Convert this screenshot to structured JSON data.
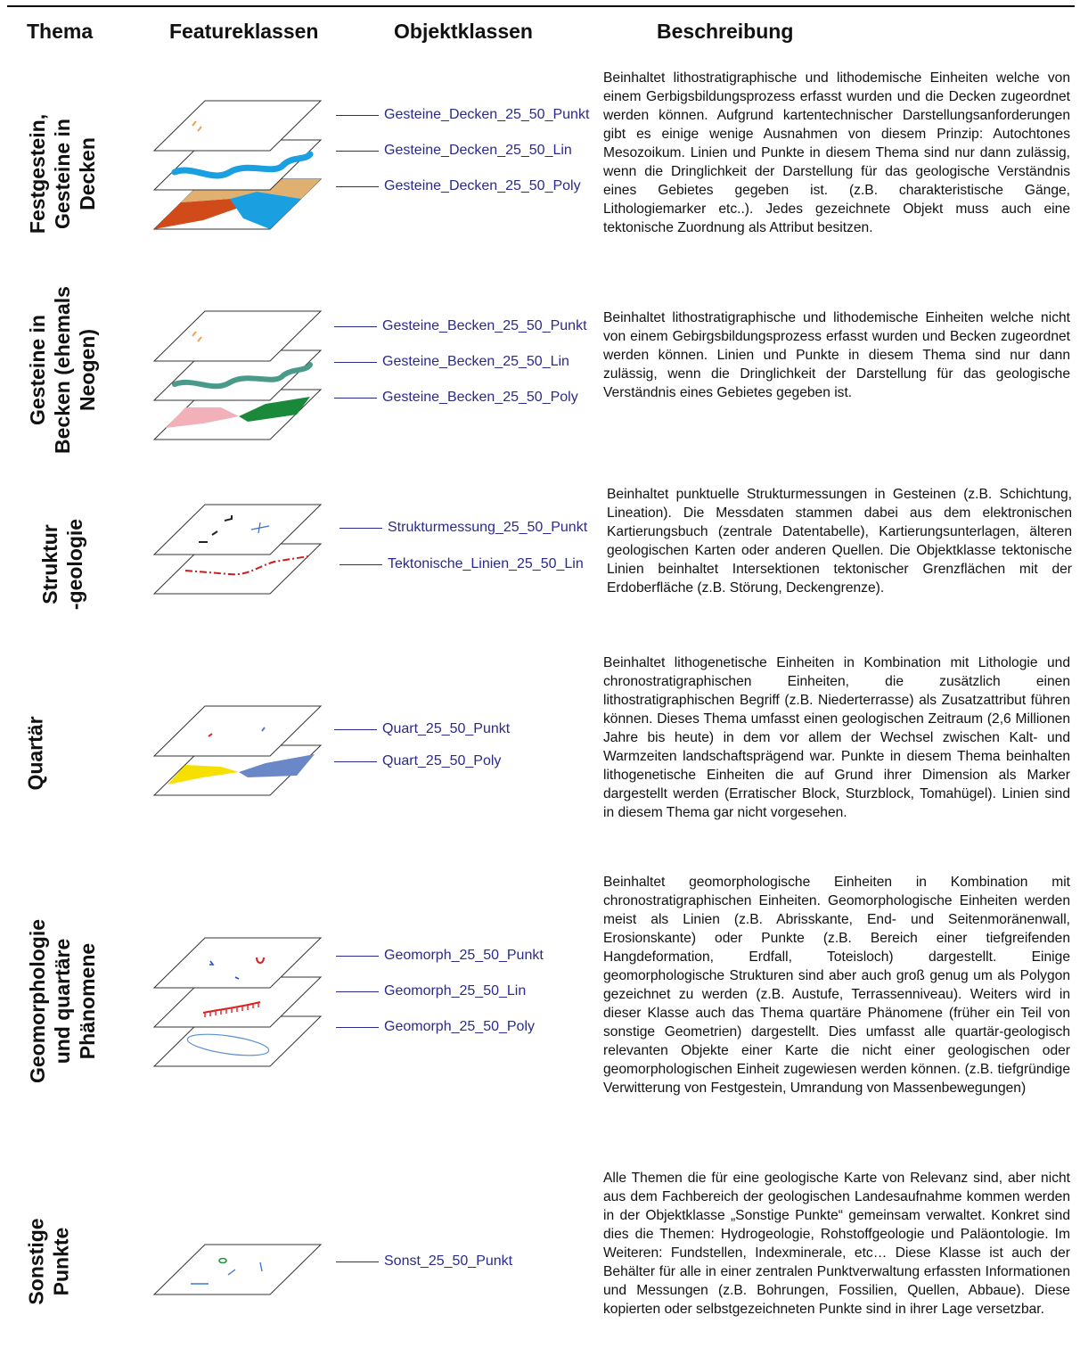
{
  "headers": {
    "thema": "Thema",
    "featureklassen": "Featureklassen",
    "objektklassen": "Objektklassen",
    "beschreibung": "Beschreibung"
  },
  "rows": [
    {
      "thema": [
        "Festgestein,",
        "Gesteine in",
        "Decken"
      ],
      "objects": [
        "Gesteine_Decken_25_50_Punkt",
        "Gesteine_Decken_25_50_Lin",
        "Gesteine_Decken_25_50_Poly"
      ],
      "description": "Beinhaltet lithostratigraphische und lithodemische Einheiten welche von einem Gerbigsbildungsprozess erfasst wurden und die Decken zugeordnet werden können. Aufgrund kartentechnischer Darstellungsanforderungen gibt es einige wenige Ausnahmen von diesem Prinzip: Autochtones Mesozoikum. Linien und Punkte in diesem Thema sind nur dann zulässig, wenn die Dringlichkeit der Darstellung für das geologische Verständnis eines Gebietes gegeben ist. (z.B. charakteristische Gänge, Lithologiemarker etc..). Jedes gezeichnete Objekt muss auch eine tektonische Zuordnung als Attribut besitzen.",
      "colors": {
        "point": "#f0a050",
        "line": "#1aa0e0",
        "poly_a": "#d04a1a",
        "poly_b": "#e0b070",
        "poly_c": "#1aa0e0"
      }
    },
    {
      "thema": [
        "Gesteine in",
        "Becken (ehemals",
        "Neogen)"
      ],
      "objects": [
        "Gesteine_Becken_25_50_Punkt",
        "Gesteine_Becken_25_50_Lin",
        "Gesteine_Becken_25_50_Poly"
      ],
      "description": "Beinhaltet lithostratigraphische und lithodemische Einheiten welche nicht von einem Gebirgsbildungsprozess erfasst wurden und Becken zugeordnet werden können. Linien und Punkte in diesem Thema sind nur dann zulässig, wenn die Dringlichkeit der Darstellung für das geologische Verständnis eines Gebietes gegeben ist.",
      "colors": {
        "point": "#f0a050",
        "line": "#4a9a8a",
        "poly_a": "#f2b0b8",
        "poly_b": "#1a8a3a"
      }
    },
    {
      "thema": [
        "Struktur",
        "-geologie"
      ],
      "objects": [
        "Strukturmessung_25_50_Punkt",
        "Tektonische_Linien_25_50_Lin"
      ],
      "description": "Beinhaltet punktuelle Strukturmessungen in Gesteinen (z.B. Schichtung, Lineation). Die Messdaten stammen dabei aus dem elektronischen Kartierungsbuch (zentrale Datentabelle), Kartierungsunterlagen, älteren geologischen Karten oder anderen Quellen. Die Objektklasse tektonische Linien beinhaltet Intersektionen tektonischer Grenzflächen mit der Erdoberfläche (z.B. Störung, Deckengrenze).",
      "colors": {
        "point": "#222222",
        "point_b": "#3a6ad0",
        "line": "#d01a1a"
      }
    },
    {
      "thema": [
        "Quartär"
      ],
      "objects": [
        "Quart_25_50_Punkt",
        "Quart_25_50_Poly"
      ],
      "description": "Beinhaltet lithogenetische Einheiten in Kombination mit Lithologie und chronostratigraphischen Einheiten, die zusätzlich einen lithostratigraphischen Begriff (z.B. Niederterrasse) als Zusatzattribut führen können. Dieses Thema umfasst einen geologischen Zeitraum (2,6 Millionen Jahre bis heute) in dem vor allem der Wechsel zwischen Kalt- und Warmzeiten landschaftsprägend war. Punkte in diesem Thema beinhalten lithogenetische Einheiten die auf Grund ihrer Dimension als Marker dargestellt werden (Erratischer Block, Sturzblock, Tomahügel). Linien sind in diesem Thema gar nicht vorgesehen.",
      "colors": {
        "point": "#e02020",
        "point_b": "#5a7ad0",
        "poly_a": "#f5e000",
        "poly_b": "#6a88c8"
      }
    },
    {
      "thema": [
        "Geomorphologie",
        "und quartäre",
        "Phänomene"
      ],
      "objects": [
        "Geomorph_25_50_Punkt",
        "Geomorph_25_50_Lin",
        "Geomorph_25_50_Poly"
      ],
      "description": "Beinhaltet geomorphologische Einheiten in Kombination mit chronostratigraphischen Einheiten. Geomorphologische Einheiten werden meist als Linien (z.B. Abrisskante, End- und Seitenmoränenwall, Erosionskante) oder Punkte (z.B. Bereich einer tiefgreifenden Hangdeformation, Erdfall, Toteisloch) dargestellt. Einige geomorphologische Strukturen sind aber auch groß genug um als Polygon gezeichnet zu werden (z.B. Austufe, Terrassenniveau). Weiters wird in dieser Klasse auch das Thema quartäre Phänomene (früher ein Teil von sonstige Geometrien) dargestellt. Dies umfasst alle quartär-geologisch relevanten Objekte einer Karte die nicht einer geologischen oder geomorphologischen Einheit zugewiesen werden können. (z.B. tiefgründige Verwitterung von Festgestein, Umrandung von Massenbewegungen)",
      "colors": {
        "point": "#2050d0",
        "point_b": "#e02020",
        "line": "#e02020",
        "poly_a": "#5a90d0"
      }
    },
    {
      "thema": [
        "Sonstige",
        "Punkte"
      ],
      "objects": [
        "Sonst_25_50_Punkt"
      ],
      "description": "Alle Themen die für eine geologische Karte von Relevanz sind, aber nicht aus dem Fachbereich der geologischen Landesaufnahme kommen werden in der Objektklasse „Sonstige Punkte“ gemeinsam verwaltet. Konkret sind dies die Themen: Hydrogeologie, Rohstoffgeologie und Paläontologie. Im Weiteren: Fundstellen, Indexminerale, etc… Diese Klasse ist auch der Behälter für alle in einer zentralen Punktverwaltung erfassten Informationen und Messungen (z.B. Bohrungen, Fossilien, Quellen, Abbaue). Diese kopierten oder selbstgezeichneten Punkte sind in ihrer Lage versetzbar.",
      "colors": {
        "point": "#1a9a3a",
        "point_b": "#3a7ad0"
      }
    }
  ]
}
